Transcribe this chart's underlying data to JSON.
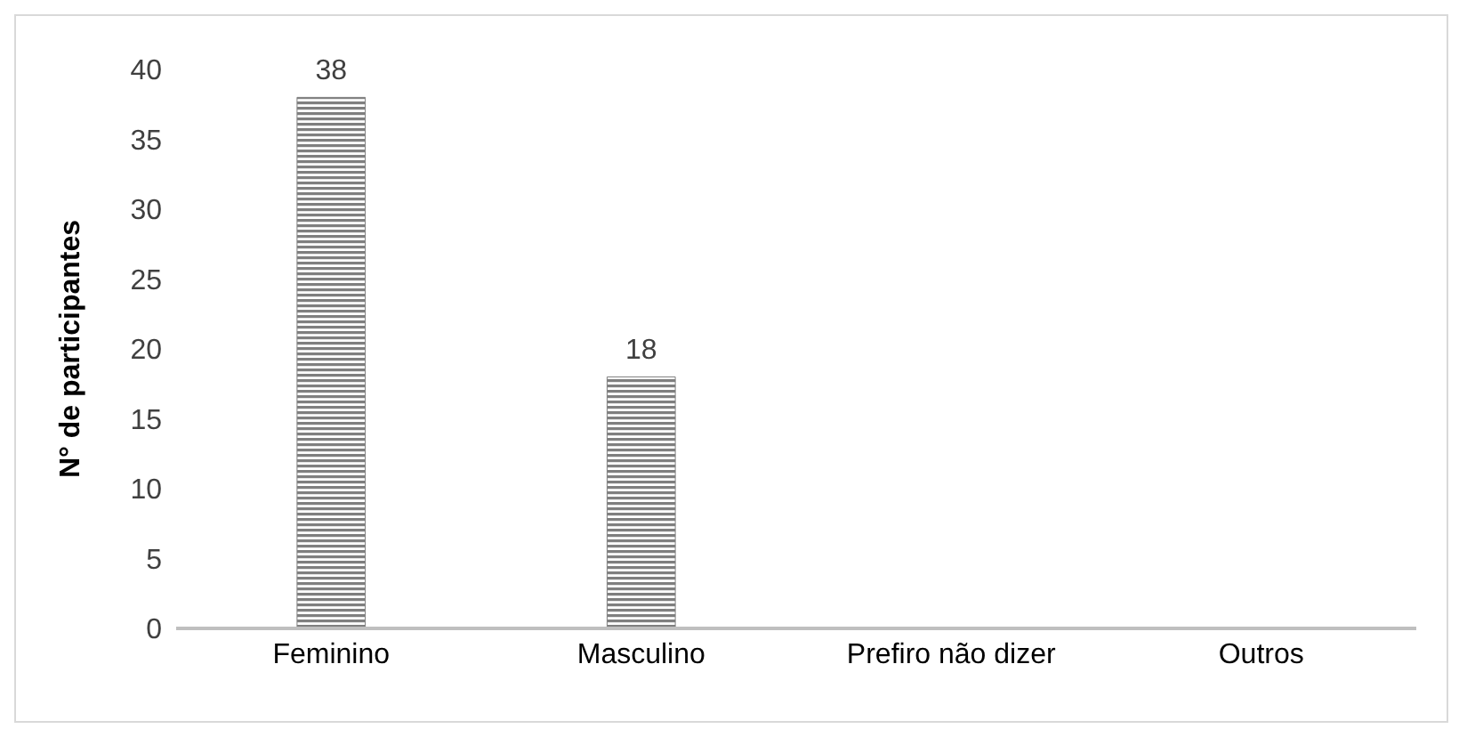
{
  "chart_data": {
    "type": "bar",
    "ylabel": "N° de participantes",
    "categories": [
      "Feminino",
      "Masculino",
      "Prefiro não dizer",
      "Outros"
    ],
    "values": [
      38,
      18,
      0,
      0
    ],
    "color": "#7f7f7f",
    "value_labels": [
      "38",
      "18",
      null,
      null
    ],
    "ylim": [
      0,
      40
    ],
    "yticks": [
      0,
      5,
      10,
      15,
      20,
      25,
      30,
      35,
      40
    ],
    "grid": false,
    "legend": false
  }
}
